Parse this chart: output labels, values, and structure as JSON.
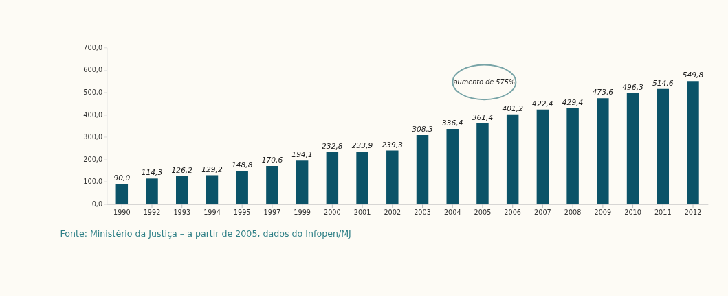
{
  "chart_data": {
    "type": "bar",
    "categories": [
      "1990",
      "1992",
      "1993",
      "1994",
      "1995",
      "1997",
      "1999",
      "2000",
      "2001",
      "2002",
      "2003",
      "2004",
      "2005",
      "2006",
      "2007",
      "2008",
      "2009",
      "2010",
      "2011",
      "2012"
    ],
    "values": [
      90.0,
      114.3,
      126.2,
      129.2,
      148.8,
      170.6,
      194.1,
      232.8,
      233.9,
      239.3,
      308.3,
      336.4,
      361.4,
      401.2,
      422.4,
      429.4,
      473.6,
      496.3,
      514.6,
      549.8
    ],
    "value_labels": [
      "90,0",
      "114,3",
      "126,2",
      "129,2",
      "148,8",
      "170,6",
      "194,1",
      "232,8",
      "233,9",
      "239,3",
      "308,3",
      "336,4",
      "361,4",
      "401,2",
      "422,4",
      "429,4",
      "473,6",
      "496,3",
      "514,6",
      "549,8"
    ],
    "color": "#0b5368",
    "ylim": [
      0,
      700
    ],
    "yticks": [
      {
        "value": 0,
        "label": "0,0"
      },
      {
        "value": 100,
        "label": "100,0"
      },
      {
        "value": 200,
        "label": "200,0"
      },
      {
        "value": 300,
        "label": "300,0"
      },
      {
        "value": 400,
        "label": "400,0"
      },
      {
        "value": 500,
        "label": "500,0"
      },
      {
        "value": 600,
        "label": "600,0"
      },
      {
        "value": 700,
        "label": "700,0"
      }
    ],
    "grid": false,
    "annotations": [
      "aumento de 575%",
      "Fonte: Ministério da Justiça – a partir de 2005, dados do Infopen/MJ"
    ]
  }
}
